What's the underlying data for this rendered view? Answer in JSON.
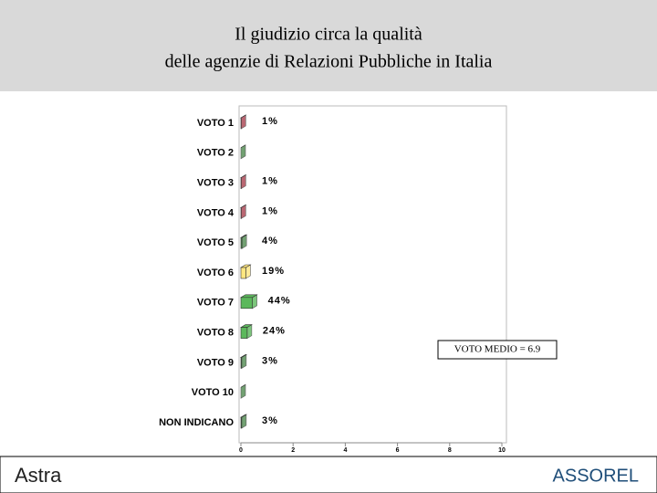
{
  "chart_data": {
    "type": "hbar3d",
    "title": "Il giudizio circa la qualità",
    "subtitle": "delle agenzie di Relazioni Pubbliche in Italia",
    "categories": [
      "VOTO 1",
      "VOTO 2",
      "VOTO 3",
      "VOTO 4",
      "VOTO 5",
      "VOTO 6",
      "VOTO 7",
      "VOTO 8",
      "VOTO 9",
      "VOTO 10",
      "NON INDICANO"
    ],
    "values": [
      0.01,
      0,
      0.01,
      0.01,
      0.04,
      0.19,
      0.44,
      0.24,
      0.03,
      0,
      0.03
    ],
    "value_labels": [
      "1%",
      null,
      "1%",
      "1%",
      "4%",
      "19%",
      "44%",
      "24%",
      "3%",
      null,
      "3%"
    ],
    "colors": [
      "#a8424f",
      "#4f8a4f",
      "#a8424f",
      "#a8424f",
      "#4f8a4f",
      "#ffe680",
      "#5cb85c",
      "#5cb85c",
      "#4f8a4f",
      "#4f8a4f",
      "#4f8a4f"
    ],
    "xlim": [
      0,
      10
    ],
    "xticks": [
      0,
      2,
      4,
      6,
      8,
      10
    ],
    "grid": false,
    "annotation": "VOTO MEDIO = 6.9"
  },
  "footer": {
    "left_logo": "Astra",
    "right_logo": "ASSOREL"
  }
}
